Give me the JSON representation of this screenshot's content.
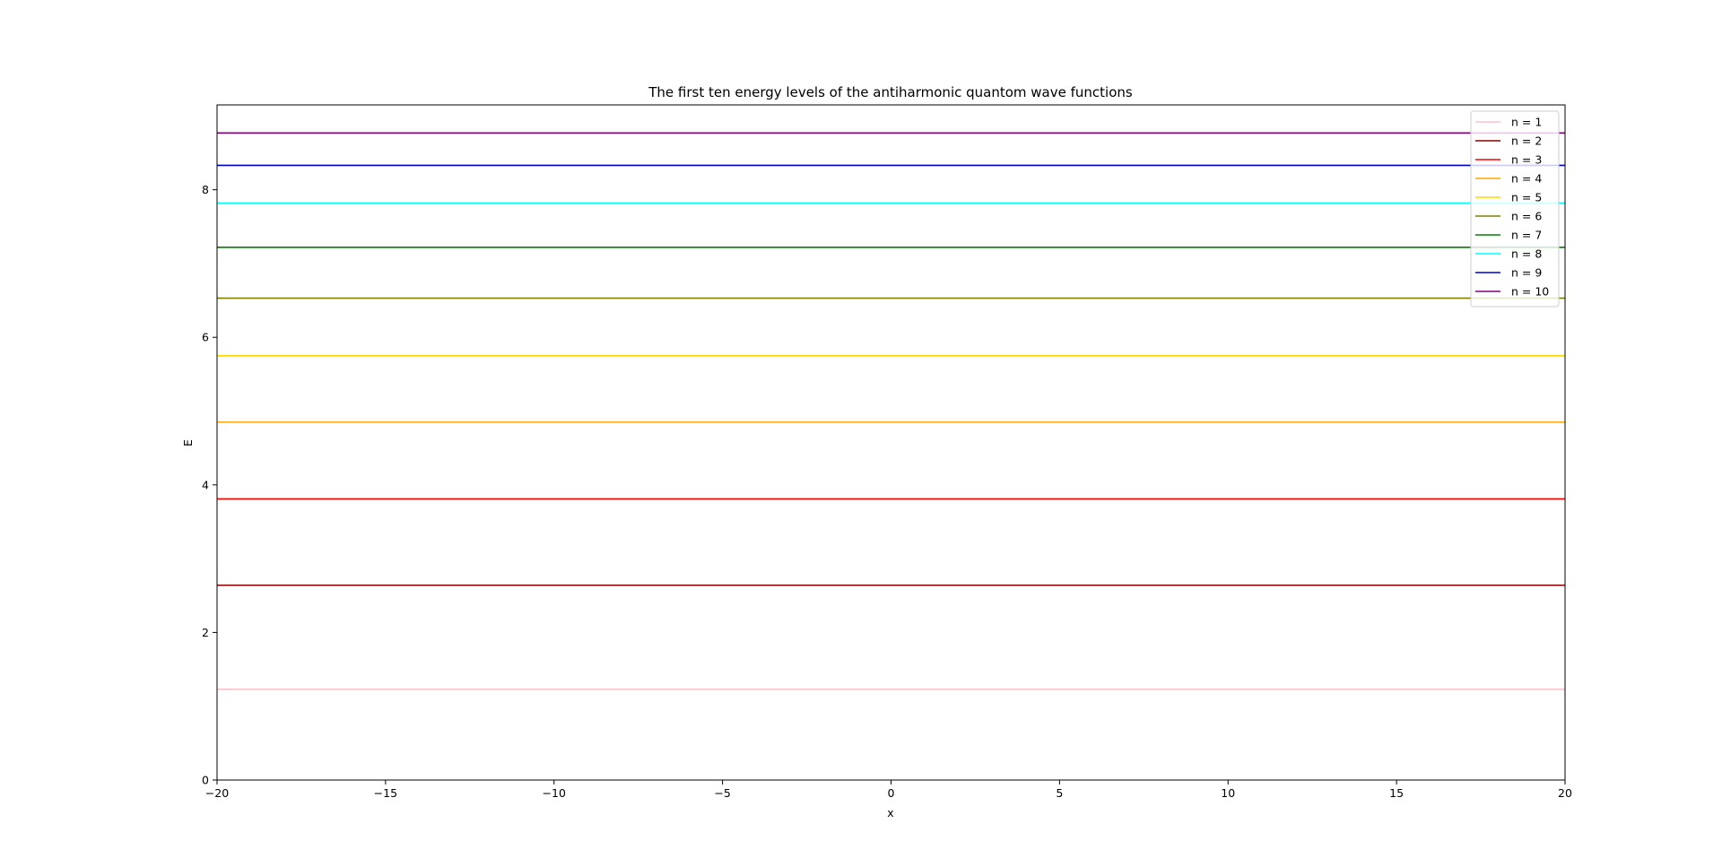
{
  "chart_data": {
    "type": "line",
    "title": "The first ten energy levels of the antiharmonic quantom wave functions",
    "xlabel": "x",
    "ylabel": "E",
    "xlim": [
      -20,
      20
    ],
    "ylim": [
      0,
      9.15
    ],
    "x_ticks": [
      -20,
      -15,
      -10,
      -5,
      0,
      5,
      10,
      15,
      20
    ],
    "x_tick_labels": [
      "−20",
      "−15",
      "−10",
      "−5",
      "0",
      "5",
      "10",
      "15",
      "20"
    ],
    "y_ticks": [
      0,
      2,
      4,
      6,
      8
    ],
    "y_tick_labels": [
      "0",
      "2",
      "4",
      "6",
      "8"
    ],
    "grid": false,
    "legend_position": "top-right",
    "x": [
      -20,
      20
    ],
    "series": [
      {
        "name": "n = 1",
        "color": "#ffc0cb",
        "values": [
          1.23,
          1.23
        ]
      },
      {
        "name": "n = 2",
        "color": "#8b0000",
        "values": [
          2.64,
          2.64
        ]
      },
      {
        "name": "n = 3",
        "color": "#ff0000",
        "values": [
          3.81,
          3.81
        ]
      },
      {
        "name": "n = 4",
        "color": "#ffa500",
        "values": [
          4.85,
          4.85
        ]
      },
      {
        "name": "n = 5",
        "color": "#ffd700",
        "values": [
          5.75,
          5.75
        ]
      },
      {
        "name": "n = 6",
        "color": "#808000",
        "values": [
          6.53,
          6.53
        ]
      },
      {
        "name": "n = 7",
        "color": "#008000",
        "values": [
          7.22,
          7.22
        ]
      },
      {
        "name": "n = 8",
        "color": "#00ffff",
        "values": [
          7.82,
          7.82
        ]
      },
      {
        "name": "n = 9",
        "color": "#0000cd",
        "values": [
          8.33,
          8.33
        ]
      },
      {
        "name": "n = 10",
        "color": "#800080",
        "values": [
          8.77,
          8.77
        ]
      }
    ]
  }
}
